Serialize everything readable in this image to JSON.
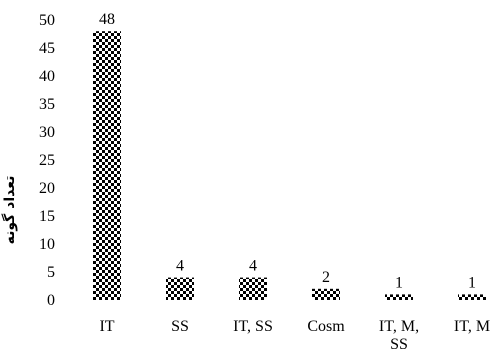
{
  "chart_data": {
    "type": "bar",
    "title": "",
    "xlabel": "",
    "ylabel": "تعداد گونه",
    "categories": [
      "IT",
      "SS",
      "IT, SS",
      "Cosm",
      "IT, M, SS",
      "IT, M"
    ],
    "category_lines": [
      [
        "IT"
      ],
      [
        "SS"
      ],
      [
        "IT, SS"
      ],
      [
        "Cosm"
      ],
      [
        "IT, M,",
        "SS"
      ],
      [
        "IT, M"
      ]
    ],
    "values": [
      48,
      4,
      4,
      2,
      1,
      1
    ],
    "data_labels": [
      "48",
      "4",
      "4",
      "2",
      "1",
      "1"
    ],
    "ylim": [
      0,
      50
    ],
    "yticks": [
      0,
      5,
      10,
      15,
      20,
      25,
      30,
      35,
      40,
      45,
      50
    ],
    "grid": false,
    "legend": "none",
    "bar_pattern": "checkerboard",
    "colors": {
      "bar_dark": "#000000",
      "bar_light": "#ffffff",
      "text": "#000000"
    }
  }
}
